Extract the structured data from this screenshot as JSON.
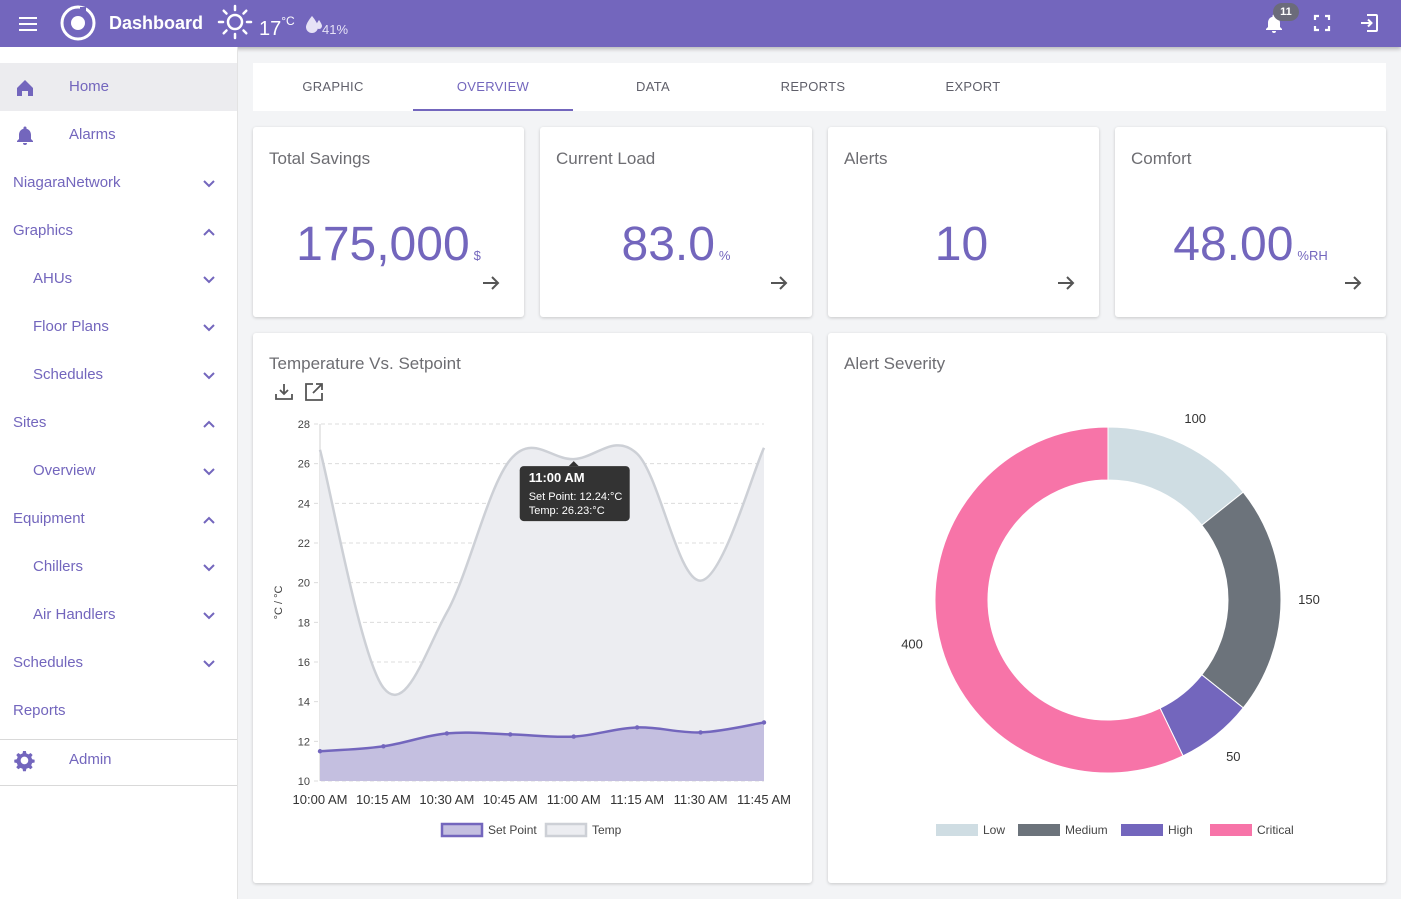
{
  "header": {
    "title": "Dashboard",
    "temperature": "17",
    "temperature_unit": "°C",
    "humidity": "41%",
    "notification_count": "11"
  },
  "sidebar": {
    "items": [
      {
        "label": "Home",
        "icon": "home-icon",
        "level": 0,
        "state": "none"
      },
      {
        "label": "Alarms",
        "icon": "bell-icon",
        "level": 0,
        "state": "none"
      },
      {
        "label": "NiagaraNetwork",
        "level": 0,
        "state": "collapsed"
      },
      {
        "label": "Graphics",
        "level": 0,
        "state": "expanded"
      },
      {
        "label": "AHUs",
        "level": 1,
        "state": "collapsed"
      },
      {
        "label": "Floor Plans",
        "level": 1,
        "state": "collapsed"
      },
      {
        "label": "Schedules",
        "level": 1,
        "state": "collapsed"
      },
      {
        "label": "Sites",
        "level": 0,
        "state": "expanded"
      },
      {
        "label": "Overview",
        "level": 1,
        "state": "collapsed"
      },
      {
        "label": "Equipment",
        "level": 0,
        "state": "expanded"
      },
      {
        "label": "Chillers",
        "level": 1,
        "state": "collapsed"
      },
      {
        "label": "Air Handlers",
        "level": 1,
        "state": "collapsed"
      },
      {
        "label": "Schedules",
        "level": 0,
        "state": "collapsed"
      },
      {
        "label": "Reports",
        "level": 0,
        "state": "none"
      },
      {
        "label": "Admin",
        "icon": "gear-icon",
        "level": 0,
        "state": "none"
      }
    ]
  },
  "tabs": [
    "GRAPHIC",
    "OVERVIEW",
    "DATA",
    "REPORTS",
    "EXPORT"
  ],
  "active_tab": "OVERVIEW",
  "kpis": [
    {
      "title": "Total Savings",
      "value": "175,000",
      "unit": "$"
    },
    {
      "title": "Current Load",
      "value": "83.0",
      "unit": "%"
    },
    {
      "title": "Alerts",
      "value": "10",
      "unit": ""
    },
    {
      "title": "Comfort",
      "value": "48.00",
      "unit": "%RH"
    }
  ],
  "colors": {
    "accent": "#7366bd",
    "setpoint_fill": "#c4bfe0",
    "temp_line": "#cdd0d6",
    "temp_fill": "#ecedf1",
    "low": "#cfdde3",
    "medium": "#6c737b",
    "high": "#7366bd",
    "critical": "#f774a8"
  },
  "chart_data": [
    {
      "type": "area",
      "title": "Temperature Vs. Setpoint",
      "ylabel": "°C / °C",
      "xlabel": "",
      "ylim": [
        10,
        28
      ],
      "yticks": [
        10,
        12,
        14,
        16,
        18,
        20,
        22,
        24,
        26,
        28
      ],
      "grid": true,
      "legend": "bottom",
      "categories": [
        "10:00 AM",
        "10:15 AM",
        "10:30 AM",
        "10:45 AM",
        "11:00 AM",
        "11:15 AM",
        "11:30 AM",
        "11:45 AM"
      ],
      "series": [
        {
          "name": "Set Point",
          "values": [
            11.5,
            11.75,
            12.4,
            12.35,
            12.24,
            12.7,
            12.45,
            12.95
          ]
        },
        {
          "name": "Temp",
          "values": [
            26.7,
            14.7,
            18.5,
            26.2,
            26.23,
            26.5,
            20.1,
            26.8
          ]
        }
      ],
      "tooltip": {
        "title": "11:00 AM",
        "lines": [
          "Set Point: 12.24:°C",
          "Temp: 26.23:°C"
        ]
      }
    },
    {
      "type": "pie",
      "title": "Alert Severity",
      "legend": "bottom",
      "slices": [
        {
          "label": "Low",
          "value": 100
        },
        {
          "label": "Medium",
          "value": 150
        },
        {
          "label": "High",
          "value": 50
        },
        {
          "label": "Critical",
          "value": 400
        }
      ]
    }
  ]
}
